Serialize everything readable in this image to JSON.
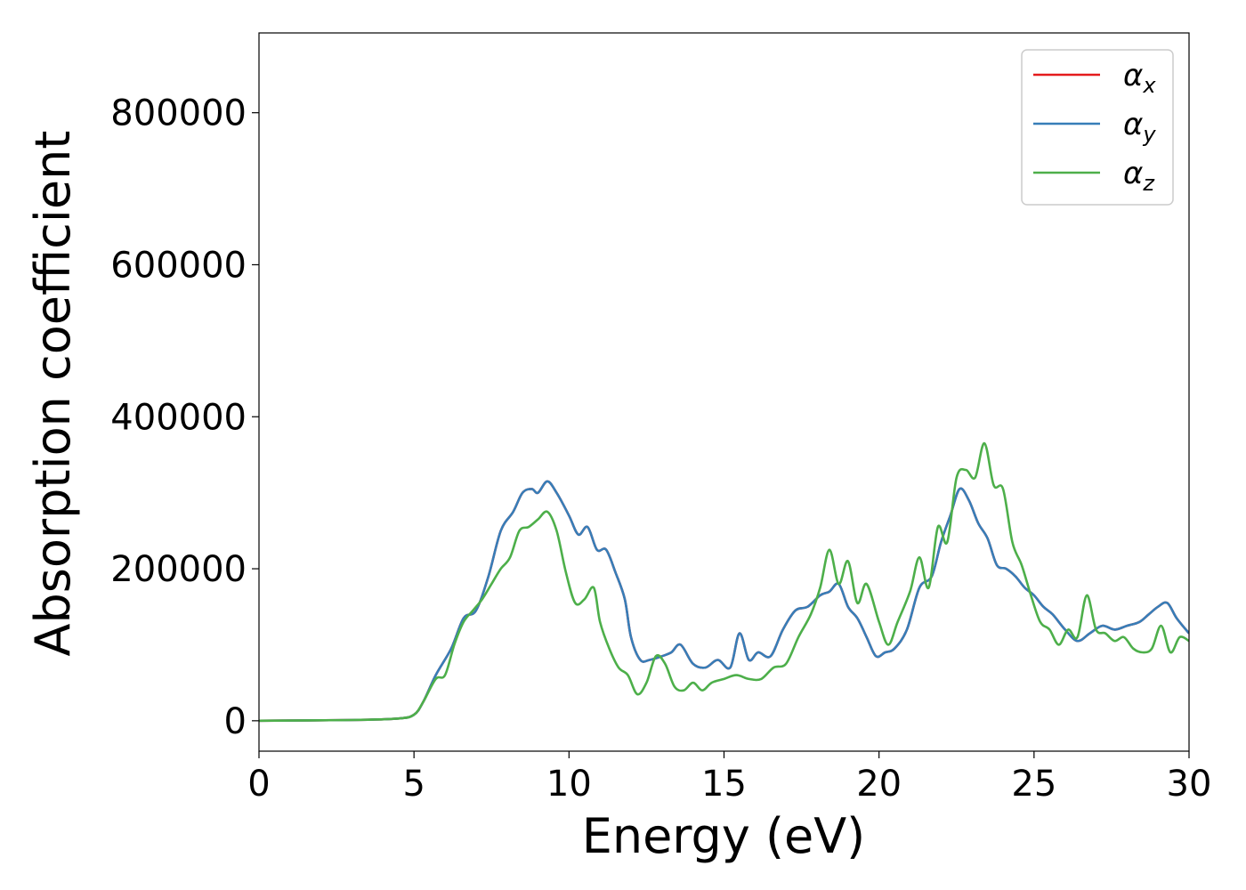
{
  "chart_data": {
    "type": "line",
    "title": "",
    "xlabel": "Energy (eV)",
    "ylabel": "Absorption coefficient",
    "xlim": [
      0,
      30
    ],
    "ylim": [
      -40000,
      905000
    ],
    "xticks": [
      0,
      5,
      10,
      15,
      20,
      25,
      30
    ],
    "yticks": [
      0,
      200000,
      400000,
      600000,
      800000
    ],
    "grid": false,
    "legend_position": "top-right",
    "series": [
      {
        "name": "α_x",
        "label_main": "α",
        "label_sub": "x",
        "color": "#e41a1c",
        "x": [
          0,
          3,
          4.5,
          5.0,
          5.3,
          5.7,
          6.2,
          6.6,
          7.0,
          7.4,
          7.8,
          8.2,
          8.5,
          8.8,
          9.0,
          9.3,
          9.6,
          10.0,
          10.3,
          10.6,
          10.9,
          11.2,
          11.5,
          11.8,
          12.0,
          12.3,
          12.6,
          13.0,
          13.3,
          13.6,
          14.0,
          14.4,
          14.8,
          15.2,
          15.5,
          15.8,
          16.1,
          16.5,
          16.9,
          17.3,
          17.7,
          18.1,
          18.4,
          18.7,
          19.0,
          19.3,
          19.6,
          19.9,
          20.2,
          20.5,
          20.9,
          21.3,
          21.7,
          22.0,
          22.3,
          22.6,
          22.9,
          23.2,
          23.5,
          23.8,
          24.1,
          24.4,
          24.7,
          25.0,
          25.3,
          25.6,
          26.0,
          26.4,
          26.8,
          27.2,
          27.6,
          28.0,
          28.4,
          28.7,
          29.0,
          29.3,
          29.6,
          30.0
        ],
        "y": [
          0,
          1000,
          3000,
          8000,
          25000,
          60000,
          95000,
          135000,
          145000,
          190000,
          250000,
          275000,
          300000,
          305000,
          300000,
          315000,
          300000,
          270000,
          245000,
          255000,
          225000,
          225000,
          195000,
          160000,
          110000,
          80000,
          80000,
          85000,
          90000,
          100000,
          75000,
          70000,
          80000,
          70000,
          115000,
          80000,
          90000,
          85000,
          120000,
          145000,
          150000,
          165000,
          170000,
          180000,
          150000,
          135000,
          110000,
          85000,
          90000,
          95000,
          120000,
          175000,
          190000,
          235000,
          270000,
          305000,
          290000,
          260000,
          240000,
          205000,
          200000,
          190000,
          175000,
          165000,
          150000,
          140000,
          120000,
          105000,
          115000,
          125000,
          120000,
          125000,
          130000,
          140000,
          150000,
          155000,
          135000,
          115000
        ]
      },
      {
        "name": "α_y",
        "label_main": "α",
        "label_sub": "y",
        "color": "#377eb8",
        "x": [
          0,
          3,
          4.5,
          5.0,
          5.3,
          5.7,
          6.2,
          6.6,
          7.0,
          7.4,
          7.8,
          8.2,
          8.5,
          8.8,
          9.0,
          9.3,
          9.6,
          10.0,
          10.3,
          10.6,
          10.9,
          11.2,
          11.5,
          11.8,
          12.0,
          12.3,
          12.6,
          13.0,
          13.3,
          13.6,
          14.0,
          14.4,
          14.8,
          15.2,
          15.5,
          15.8,
          16.1,
          16.5,
          16.9,
          17.3,
          17.7,
          18.1,
          18.4,
          18.7,
          19.0,
          19.3,
          19.6,
          19.9,
          20.2,
          20.5,
          20.9,
          21.3,
          21.7,
          22.0,
          22.3,
          22.6,
          22.9,
          23.2,
          23.5,
          23.8,
          24.1,
          24.4,
          24.7,
          25.0,
          25.3,
          25.6,
          26.0,
          26.4,
          26.8,
          27.2,
          27.6,
          28.0,
          28.4,
          28.7,
          29.0,
          29.3,
          29.6,
          30.0
        ],
        "y": [
          0,
          1000,
          3000,
          8000,
          25000,
          60000,
          95000,
          135000,
          145000,
          190000,
          250000,
          275000,
          300000,
          305000,
          300000,
          315000,
          300000,
          270000,
          245000,
          255000,
          225000,
          225000,
          195000,
          160000,
          110000,
          80000,
          80000,
          85000,
          90000,
          100000,
          75000,
          70000,
          80000,
          70000,
          115000,
          80000,
          90000,
          85000,
          120000,
          145000,
          150000,
          165000,
          170000,
          180000,
          150000,
          135000,
          110000,
          85000,
          90000,
          95000,
          120000,
          175000,
          190000,
          235000,
          270000,
          305000,
          290000,
          260000,
          240000,
          205000,
          200000,
          190000,
          175000,
          165000,
          150000,
          140000,
          120000,
          105000,
          115000,
          125000,
          120000,
          125000,
          130000,
          140000,
          150000,
          155000,
          135000,
          115000
        ]
      },
      {
        "name": "α_z",
        "label_main": "α",
        "label_sub": "z",
        "color": "#4daf4a",
        "x": [
          0,
          3,
          4.5,
          5.0,
          5.3,
          5.7,
          6.0,
          6.3,
          6.6,
          6.9,
          7.2,
          7.5,
          7.8,
          8.1,
          8.4,
          8.7,
          9.0,
          9.3,
          9.6,
          9.9,
          10.2,
          10.5,
          10.8,
          11.0,
          11.3,
          11.6,
          11.9,
          12.2,
          12.5,
          12.8,
          13.1,
          13.4,
          13.7,
          14.0,
          14.3,
          14.6,
          15.0,
          15.4,
          15.8,
          16.2,
          16.6,
          17.0,
          17.4,
          17.8,
          18.1,
          18.4,
          18.7,
          19.0,
          19.3,
          19.6,
          20.0,
          20.3,
          20.6,
          21.0,
          21.3,
          21.6,
          21.9,
          22.2,
          22.5,
          22.8,
          23.1,
          23.4,
          23.7,
          24.0,
          24.3,
          24.6,
          24.9,
          25.2,
          25.5,
          25.8,
          26.1,
          26.4,
          26.7,
          27.0,
          27.3,
          27.6,
          27.9,
          28.2,
          28.5,
          28.8,
          29.1,
          29.4,
          29.7,
          30.0
        ],
        "y": [
          0,
          1000,
          3000,
          8000,
          25000,
          55000,
          60000,
          100000,
          130000,
          145000,
          160000,
          180000,
          200000,
          215000,
          250000,
          255000,
          265000,
          275000,
          250000,
          195000,
          155000,
          160000,
          175000,
          130000,
          95000,
          70000,
          60000,
          35000,
          50000,
          85000,
          75000,
          45000,
          40000,
          50000,
          40000,
          50000,
          55000,
          60000,
          55000,
          55000,
          70000,
          75000,
          110000,
          140000,
          175000,
          225000,
          180000,
          210000,
          155000,
          180000,
          130000,
          100000,
          130000,
          170000,
          215000,
          175000,
          255000,
          235000,
          320000,
          330000,
          320000,
          365000,
          310000,
          305000,
          235000,
          205000,
          165000,
          130000,
          120000,
          100000,
          120000,
          110000,
          165000,
          120000,
          115000,
          105000,
          110000,
          95000,
          90000,
          95000,
          125000,
          90000,
          110000,
          105000
        ]
      }
    ]
  }
}
